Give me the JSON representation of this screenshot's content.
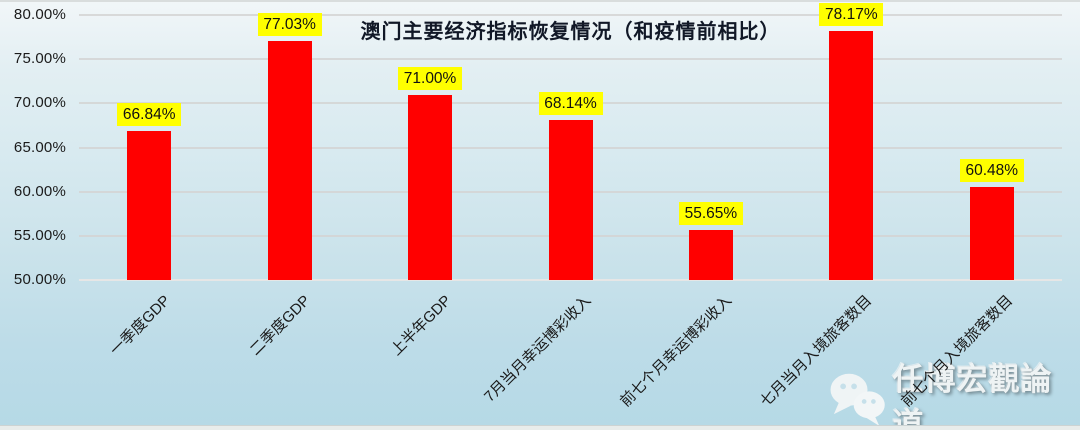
{
  "chart_data": {
    "type": "bar",
    "title": "澳门主要经济指标恢复情况（和疫情前相比）",
    "categories": [
      "一季度GDP",
      "二季度GDP",
      "上半年GDP",
      "7月当月幸运博彩收入",
      "前七个月幸运博彩收入",
      "七月当月入境旅客数目",
      "前七个月入境旅客数目"
    ],
    "values": [
      66.84,
      77.03,
      71.0,
      68.14,
      55.65,
      78.17,
      60.48
    ],
    "value_labels": [
      "66.84%",
      "77.03%",
      "71.00%",
      "68.14%",
      "55.65%",
      "78.17%",
      "60.48%"
    ],
    "xlabel": "",
    "ylabel": "",
    "ylim": [
      50,
      80
    ],
    "y_tick_labels": [
      "80.00%",
      "75.00%",
      "70.00%",
      "65.00%",
      "60.00%",
      "55.00%",
      "50.00%"
    ],
    "y_tick_values": [
      80,
      75,
      70,
      65,
      60,
      55,
      50
    ],
    "grid": true,
    "legend": "none",
    "bar_color": "#FF0000",
    "value_label_bg": "#FFFF00",
    "value_label_color": "#111111"
  },
  "watermark": {
    "text": "任博宏觀論道",
    "icon": "wechat-icon"
  }
}
